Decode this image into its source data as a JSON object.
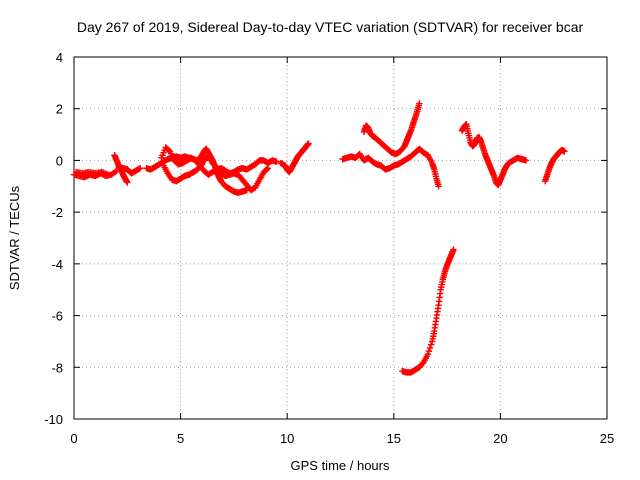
{
  "chart_data": {
    "type": "scatter",
    "title": "Day 267 of 2019, Sidereal Day-to-day VTEC variation (SDTVAR) for receiver bcar",
    "xlabel": "GPS time / hours",
    "ylabel": "SDTVAR / TECUs",
    "xlim": [
      0,
      25
    ],
    "ylim": [
      -10,
      4
    ],
    "xticks": [
      "0",
      "5",
      "10",
      "15",
      "20",
      "25"
    ],
    "yticks": [
      "-10",
      "-8",
      "-6",
      "-4",
      "-2",
      "0",
      "2",
      "4"
    ],
    "grid": true,
    "marker": "plus",
    "color": "#ff0000",
    "series": [
      {
        "segments": [
          [
            [
              0.0,
              -0.55
            ],
            [
              0.25,
              -0.6
            ],
            [
              0.5,
              -0.65
            ],
            [
              0.75,
              -0.55
            ],
            [
              1.0,
              -0.6
            ],
            [
              1.25,
              -0.5
            ],
            [
              1.5,
              -0.6
            ],
            [
              1.75,
              -0.55
            ],
            [
              2.0,
              -0.4
            ]
          ],
          [
            [
              0.1,
              -0.45
            ],
            [
              0.4,
              -0.5
            ],
            [
              0.7,
              -0.45
            ],
            [
              1.0,
              -0.5
            ],
            [
              1.3,
              -0.45
            ],
            [
              1.6,
              -0.55
            ]
          ],
          [
            [
              1.9,
              0.2
            ],
            [
              2.0,
              0.0
            ],
            [
              2.1,
              -0.2
            ],
            [
              2.2,
              -0.35
            ],
            [
              2.3,
              -0.55
            ],
            [
              2.4,
              -0.7
            ],
            [
              2.5,
              -0.85
            ]
          ],
          [
            [
              2.1,
              -0.25
            ],
            [
              2.3,
              -0.3
            ],
            [
              2.5,
              -0.35
            ],
            [
              2.7,
              -0.5
            ],
            [
              2.9,
              -0.4
            ],
            [
              3.1,
              -0.3
            ]
          ],
          [
            [
              3.4,
              -0.3
            ],
            [
              3.6,
              -0.35
            ],
            [
              3.8,
              -0.25
            ],
            [
              4.0,
              -0.15
            ],
            [
              4.2,
              -0.05
            ],
            [
              4.4,
              0.05
            ],
            [
              4.6,
              0.1
            ],
            [
              4.8,
              0.15
            ],
            [
              5.0,
              0.1
            ],
            [
              5.2,
              0.15
            ],
            [
              5.4,
              0.1
            ],
            [
              5.6,
              0.05
            ],
            [
              5.8,
              0.0
            ],
            [
              6.0,
              0.2
            ],
            [
              6.1,
              0.35
            ],
            [
              6.2,
              0.45
            ],
            [
              6.3,
              0.3
            ],
            [
              6.4,
              0.15
            ],
            [
              6.5,
              0.0
            ],
            [
              6.6,
              -0.2
            ],
            [
              6.7,
              -0.45
            ],
            [
              6.8,
              -0.65
            ],
            [
              6.9,
              -0.8
            ],
            [
              7.1,
              -1.0
            ],
            [
              7.3,
              -1.1
            ],
            [
              7.5,
              -1.2
            ],
            [
              7.7,
              -1.25
            ],
            [
              7.9,
              -1.2
            ],
            [
              8.1,
              -1.15
            ]
          ],
          [
            [
              4.2,
              -0.2
            ],
            [
              4.4,
              -0.5
            ],
            [
              4.6,
              -0.75
            ],
            [
              4.8,
              -0.8
            ],
            [
              5.0,
              -0.7
            ],
            [
              5.2,
              -0.6
            ],
            [
              5.4,
              -0.55
            ],
            [
              5.6,
              -0.45
            ],
            [
              5.8,
              -0.35
            ],
            [
              6.0,
              -0.15
            ],
            [
              6.1,
              0.05
            ],
            [
              6.2,
              0.1
            ],
            [
              6.4,
              0.1
            ],
            [
              6.5,
              -0.1
            ],
            [
              6.7,
              -0.3
            ],
            [
              6.9,
              -0.5
            ],
            [
              7.1,
              -0.6
            ],
            [
              7.3,
              -0.55
            ],
            [
              7.5,
              -0.5
            ],
            [
              7.7,
              -0.55
            ],
            [
              7.9,
              -0.75
            ],
            [
              8.1,
              -0.95
            ],
            [
              8.3,
              -1.15
            ],
            [
              8.5,
              -1.05
            ],
            [
              8.7,
              -0.75
            ],
            [
              8.9,
              -0.45
            ],
            [
              9.1,
              -0.3
            ]
          ],
          [
            [
              4.1,
              0.1
            ],
            [
              4.3,
              0.5
            ],
            [
              4.5,
              0.35
            ],
            [
              4.7,
              0.0
            ],
            [
              4.9,
              -0.15
            ],
            [
              5.1,
              -0.1
            ],
            [
              5.3,
              0.0
            ],
            [
              5.5,
              0.1
            ],
            [
              5.7,
              0.0
            ],
            [
              5.9,
              -0.2
            ],
            [
              6.1,
              -0.4
            ],
            [
              6.3,
              -0.55
            ],
            [
              6.5,
              -0.45
            ],
            [
              6.7,
              -0.35
            ],
            [
              6.9,
              -0.3
            ],
            [
              7.1,
              -0.4
            ],
            [
              7.3,
              -0.5
            ],
            [
              7.5,
              -0.45
            ],
            [
              7.7,
              -0.35
            ],
            [
              7.9,
              -0.3
            ],
            [
              8.1,
              -0.35
            ],
            [
              8.3,
              -0.25
            ],
            [
              8.5,
              -0.15
            ],
            [
              8.7,
              0.0
            ],
            [
              8.9,
              0.0
            ],
            [
              9.1,
              -0.1
            ],
            [
              9.3,
              0.0
            ],
            [
              9.5,
              -0.05
            ]
          ],
          [
            [
              9.7,
              -0.1
            ],
            [
              9.9,
              -0.2
            ],
            [
              10.0,
              -0.35
            ],
            [
              10.1,
              -0.45
            ],
            [
              10.2,
              -0.3
            ],
            [
              10.3,
              -0.15
            ],
            [
              10.4,
              0.0
            ],
            [
              10.5,
              0.15
            ],
            [
              10.6,
              0.25
            ],
            [
              10.7,
              0.35
            ],
            [
              10.8,
              0.45
            ],
            [
              10.9,
              0.55
            ],
            [
              11.0,
              0.65
            ]
          ],
          [
            [
              12.6,
              0.05
            ],
            [
              12.8,
              0.1
            ],
            [
              13.0,
              0.15
            ],
            [
              13.2,
              0.1
            ],
            [
              13.4,
              0.25
            ],
            [
              13.6,
              0.0
            ],
            [
              13.8,
              0.1
            ],
            [
              14.0,
              -0.05
            ],
            [
              14.2,
              -0.15
            ],
            [
              14.4,
              -0.2
            ],
            [
              14.6,
              -0.35
            ],
            [
              14.8,
              -0.3
            ],
            [
              15.0,
              -0.2
            ],
            [
              15.2,
              -0.15
            ],
            [
              15.4,
              -0.05
            ],
            [
              15.6,
              0.05
            ],
            [
              15.8,
              0.15
            ],
            [
              16.0,
              0.3
            ],
            [
              16.2,
              0.45
            ],
            [
              16.4,
              0.3
            ],
            [
              16.6,
              0.2
            ],
            [
              16.8,
              -0.1
            ],
            [
              16.9,
              -0.35
            ],
            [
              17.0,
              -0.7
            ],
            [
              17.1,
              -1.0
            ]
          ],
          [
            [
              13.6,
              1.1
            ],
            [
              13.7,
              1.35
            ],
            [
              13.8,
              1.25
            ],
            [
              13.9,
              1.05
            ],
            [
              14.0,
              0.95
            ],
            [
              14.1,
              0.9
            ],
            [
              14.3,
              0.75
            ],
            [
              14.5,
              0.6
            ],
            [
              14.7,
              0.45
            ],
            [
              14.9,
              0.3
            ],
            [
              15.1,
              0.25
            ],
            [
              15.3,
              0.35
            ],
            [
              15.5,
              0.55
            ],
            [
              15.6,
              0.75
            ],
            [
              15.7,
              0.95
            ],
            [
              15.8,
              1.15
            ],
            [
              15.9,
              1.4
            ],
            [
              16.0,
              1.65
            ],
            [
              16.1,
              1.9
            ],
            [
              16.2,
              2.2
            ]
          ],
          [
            [
              15.4,
              -8.15
            ],
            [
              15.6,
              -8.2
            ],
            [
              15.8,
              -8.2
            ],
            [
              16.0,
              -8.1
            ],
            [
              16.2,
              -8.0
            ],
            [
              16.4,
              -7.8
            ],
            [
              16.6,
              -7.5
            ],
            [
              16.8,
              -7.0
            ],
            [
              16.9,
              -6.6
            ],
            [
              17.0,
              -6.1
            ],
            [
              17.1,
              -5.6
            ],
            [
              17.2,
              -5.0
            ],
            [
              17.3,
              -4.6
            ],
            [
              17.4,
              -4.3
            ],
            [
              17.5,
              -4.05
            ],
            [
              17.6,
              -3.85
            ],
            [
              17.7,
              -3.65
            ],
            [
              17.8,
              -3.45
            ]
          ],
          [
            [
              18.2,
              1.15
            ],
            [
              18.3,
              1.3
            ],
            [
              18.4,
              1.4
            ],
            [
              18.5,
              1.05
            ],
            [
              18.6,
              0.7
            ],
            [
              18.7,
              0.55
            ],
            [
              18.8,
              0.65
            ],
            [
              18.9,
              0.85
            ],
            [
              19.0,
              0.9
            ],
            [
              19.1,
              0.7
            ],
            [
              19.2,
              0.45
            ],
            [
              19.3,
              0.2
            ],
            [
              19.4,
              0.0
            ],
            [
              19.5,
              -0.2
            ],
            [
              19.6,
              -0.4
            ],
            [
              19.7,
              -0.6
            ],
            [
              19.8,
              -0.85
            ],
            [
              19.9,
              -0.95
            ],
            [
              20.0,
              -0.75
            ],
            [
              20.1,
              -0.55
            ],
            [
              20.2,
              -0.35
            ],
            [
              20.3,
              -0.2
            ],
            [
              20.4,
              -0.1
            ],
            [
              20.6,
              0.0
            ],
            [
              20.8,
              0.1
            ],
            [
              21.0,
              0.05
            ],
            [
              21.2,
              0.0
            ]
          ],
          [
            [
              22.1,
              -0.8
            ],
            [
              22.2,
              -0.55
            ],
            [
              22.3,
              -0.3
            ],
            [
              22.4,
              -0.1
            ],
            [
              22.5,
              0.05
            ],
            [
              22.6,
              0.15
            ],
            [
              22.7,
              0.25
            ],
            [
              22.8,
              0.35
            ],
            [
              22.9,
              0.4
            ],
            [
              23.0,
              0.35
            ]
          ]
        ]
      }
    ]
  }
}
